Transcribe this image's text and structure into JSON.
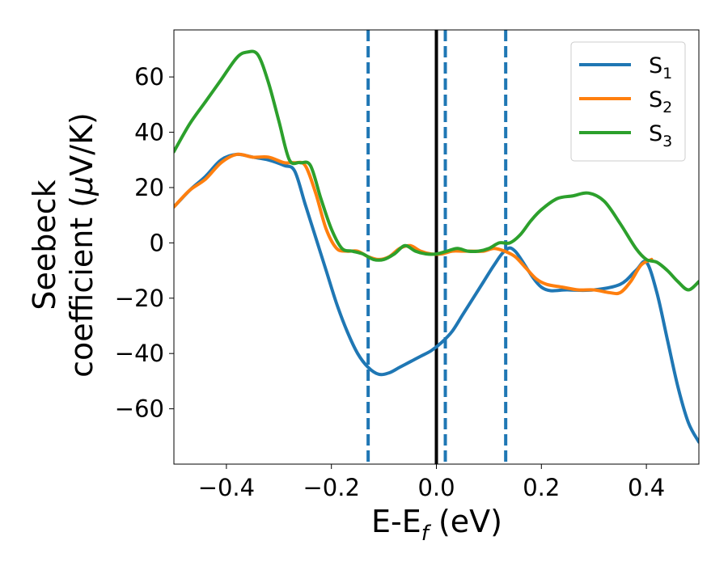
{
  "chart_data": {
    "type": "line",
    "xlabel": "E-E",
    "xlabel_sub": "f",
    "xlabel_unit": " (eV)",
    "ylabel_line1": "Seebeck",
    "ylabel_line2": "coefficient  (",
    "ylabel_mu": "μ",
    "ylabel_unit": "V/K)",
    "xlim": [
      -0.5,
      0.5
    ],
    "ylim": [
      -80,
      77
    ],
    "xticks": [
      -0.4,
      -0.2,
      0.0,
      0.2,
      0.4
    ],
    "xtick_labels": [
      "−0.4",
      "−0.2",
      "0.0",
      "0.2",
      "0.4"
    ],
    "yticks": [
      -60,
      -40,
      -20,
      0,
      20,
      40,
      60
    ],
    "ytick_labels": [
      "−60",
      "−40",
      "−20",
      "0",
      "20",
      "40",
      "60"
    ],
    "legend_position": "top-right",
    "vlines": [
      {
        "x": -0.13,
        "style": "dashed",
        "color": "#1f77b4"
      },
      {
        "x": 0.0,
        "style": "solid",
        "color": "#000000"
      },
      {
        "x": 0.017,
        "style": "dashed",
        "color": "#1f77b4"
      },
      {
        "x": 0.132,
        "style": "dashed",
        "color": "#1f77b4"
      }
    ],
    "series": [
      {
        "name": "S",
        "sub": "1",
        "color": "#1f77b4",
        "x": [
          -0.5,
          -0.47,
          -0.44,
          -0.41,
          -0.38,
          -0.35,
          -0.32,
          -0.29,
          -0.27,
          -0.25,
          -0.23,
          -0.21,
          -0.19,
          -0.17,
          -0.15,
          -0.13,
          -0.11,
          -0.09,
          -0.07,
          -0.05,
          -0.03,
          -0.01,
          0.01,
          0.03,
          0.05,
          0.07,
          0.09,
          0.11,
          0.13,
          0.15,
          0.2,
          0.25,
          0.3,
          0.35,
          0.38,
          0.4,
          0.42,
          0.44,
          0.46,
          0.48,
          0.5
        ],
        "y": [
          13,
          19,
          24,
          30,
          32,
          31,
          30,
          28,
          26,
          14,
          2,
          -10,
          -22,
          -32,
          -40,
          -45,
          -47.5,
          -47,
          -45,
          -43,
          -41,
          -39,
          -36,
          -32,
          -26,
          -20,
          -14,
          -8,
          -3,
          -3,
          -16,
          -17,
          -17,
          -15,
          -10,
          -7,
          -18,
          -35,
          -52,
          -65,
          -72
        ]
      },
      {
        "name": "S",
        "sub": "2",
        "color": "#ff7f0e",
        "x": [
          -0.5,
          -0.47,
          -0.44,
          -0.41,
          -0.38,
          -0.35,
          -0.32,
          -0.29,
          -0.27,
          -0.25,
          -0.23,
          -0.21,
          -0.19,
          -0.17,
          -0.15,
          -0.13,
          -0.11,
          -0.09,
          -0.07,
          -0.05,
          -0.03,
          -0.01,
          0.01,
          0.03,
          0.05,
          0.07,
          0.09,
          0.11,
          0.13,
          0.15,
          0.17,
          0.19,
          0.21,
          0.24,
          0.27,
          0.3,
          0.33,
          0.35,
          0.37,
          0.39,
          0.41
        ],
        "y": [
          13,
          19,
          23,
          29,
          32,
          31,
          31,
          29,
          29,
          28,
          18,
          5,
          -2,
          -3,
          -3,
          -5,
          -6,
          -5,
          -2,
          -1,
          -3,
          -4,
          -4,
          -3,
          -3,
          -3,
          -3,
          -2,
          -3,
          -5,
          -9,
          -13,
          -15,
          -16,
          -17,
          -17,
          -18,
          -18,
          -14,
          -8,
          -6
        ]
      },
      {
        "name": "S",
        "sub": "3",
        "color": "#2ca02c",
        "x": [
          -0.5,
          -0.47,
          -0.44,
          -0.41,
          -0.38,
          -0.36,
          -0.34,
          -0.32,
          -0.3,
          -0.28,
          -0.26,
          -0.24,
          -0.22,
          -0.2,
          -0.18,
          -0.16,
          -0.14,
          -0.12,
          -0.1,
          -0.08,
          -0.06,
          -0.04,
          -0.02,
          0.0,
          0.02,
          0.04,
          0.06,
          0.08,
          0.1,
          0.12,
          0.14,
          0.16,
          0.18,
          0.2,
          0.23,
          0.26,
          0.29,
          0.32,
          0.35,
          0.38,
          0.4,
          0.42,
          0.44,
          0.46,
          0.48,
          0.5
        ],
        "y": [
          33,
          43,
          51,
          59,
          67,
          69,
          68,
          58,
          44,
          30,
          29,
          28,
          16,
          5,
          -2,
          -3,
          -4,
          -6,
          -6,
          -4,
          -1,
          -3,
          -4,
          -4,
          -3,
          -2,
          -3,
          -3,
          -2,
          0,
          0,
          3,
          8,
          12,
          16,
          17,
          18,
          15,
          7,
          -2,
          -6,
          -7,
          -10,
          -14,
          -17,
          -14
        ]
      }
    ]
  }
}
